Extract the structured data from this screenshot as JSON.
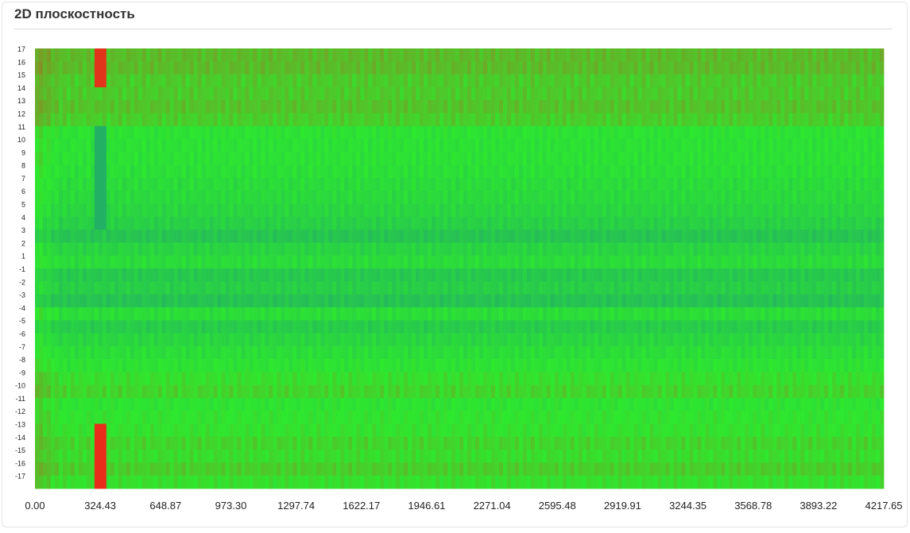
{
  "header": {
    "title": "2D плоскостность"
  },
  "chart_data": {
    "type": "heatmap",
    "title": "2D плоскостность",
    "xlabel": "",
    "ylabel": "",
    "xlim": [
      0,
      4217.65
    ],
    "x_ticks": [
      "0.00",
      "324.43",
      "648.87",
      "973.30",
      "1297.74",
      "1622.17",
      "1946.61",
      "2271.04",
      "2595.48",
      "2919.91",
      "3244.35",
      "3568.78",
      "3893.22",
      "4217.65"
    ],
    "y_ticks": [
      "17",
      "16",
      "15",
      "14",
      "13",
      "12",
      "11",
      "10",
      "9",
      "8",
      "7",
      "6",
      "5",
      "4",
      "3",
      "2",
      "1",
      "-1",
      "-2",
      "-3",
      "-4",
      "-5",
      "-6",
      "-7",
      "-8",
      "-9",
      "-10",
      "-11",
      "-12",
      "-13",
      "-14",
      "-15",
      "-16",
      "-17"
    ],
    "colorscale": [
      "#1a8a8a",
      "#2ee82e",
      "#e82e1a"
    ],
    "row_levels": [
      0.62,
      0.62,
      0.58,
      0.58,
      0.6,
      0.57,
      0.47,
      0.46,
      0.46,
      0.45,
      0.43,
      0.42,
      0.4,
      0.37,
      0.31,
      0.39,
      0.43,
      0.33,
      0.36,
      0.3,
      0.44,
      0.35,
      0.4,
      0.44,
      0.47,
      0.52,
      0.55,
      0.48,
      0.5,
      0.51,
      0.55,
      0.53,
      0.57,
      0.52
    ],
    "column_anomalies": [
      {
        "x": 324.43,
        "rows": [
          "17",
          "16",
          "15"
        ],
        "level": 0.98
      },
      {
        "x": 324.43,
        "rows": [
          "-13",
          "-14",
          "-15",
          "-16",
          "-17"
        ],
        "level": 1.0
      },
      {
        "x": 324.43,
        "rows": [
          "11",
          "10",
          "9",
          "8",
          "7",
          "6",
          "5",
          "4"
        ],
        "level": 0.2
      }
    ]
  }
}
